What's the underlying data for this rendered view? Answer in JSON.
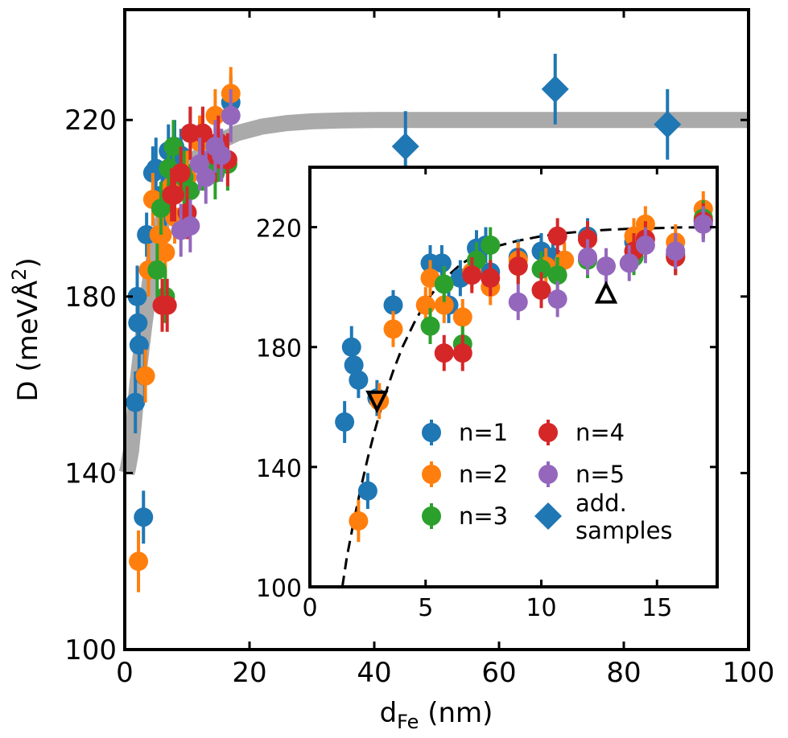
{
  "chart_data": [
    {
      "name": "main",
      "type": "scatter",
      "xlabel": {
        "main": "d",
        "sub": "Fe",
        "unit": " (nm)"
      },
      "ylabel": {
        "main": "D (meVÅ",
        "sup": "2",
        "close": ")"
      },
      "xlim": [
        0,
        100
      ],
      "ylim": [
        100,
        245
      ],
      "xticks": [
        "0",
        "20",
        "40",
        "60",
        "80",
        "100"
      ],
      "yticks": [
        "100",
        "140",
        "180",
        "220"
      ],
      "xtick_values": [
        0,
        20,
        40,
        60,
        80,
        100
      ],
      "ytick_values": [
        100,
        140,
        180,
        220
      ],
      "fit_band": {
        "color": "#aaaaaa",
        "x": [
          0.3,
          0.5,
          1.0,
          1.5,
          2,
          3,
          4,
          5,
          6,
          7,
          8,
          10,
          12,
          15,
          18,
          22,
          26,
          30,
          35,
          40,
          50,
          60,
          80,
          100
        ],
        "y": [
          140,
          141,
          145,
          152,
          160,
          172,
          183,
          191,
          197,
          201,
          205,
          209,
          212,
          215,
          217,
          218.5,
          219.3,
          219.7,
          219.9,
          220,
          220,
          220,
          220,
          220
        ]
      },
      "series": [
        {
          "name": "n=1",
          "color": "#1f77b4",
          "points": [
            [
              1.7,
              156,
              7
            ],
            [
              2.0,
              180,
              7
            ],
            [
              2.1,
              174,
              7
            ],
            [
              2.3,
              169,
              6
            ],
            [
              3.0,
              130,
              6
            ],
            [
              3.2,
              162,
              6
            ],
            [
              3.5,
              194,
              5
            ],
            [
              4.5,
              208,
              6
            ],
            [
              5.0,
              209,
              7
            ],
            [
              6.0,
              203,
              7
            ],
            [
              6.5,
              202,
              6
            ],
            [
              7.0,
              213,
              6
            ],
            [
              8.0,
              214,
              6
            ],
            [
              9.0,
              212,
              6
            ],
            [
              10.5,
              217,
              6
            ],
            [
              12.5,
              217,
              6
            ],
            [
              15.5,
              212,
              6
            ],
            [
              17.0,
              224,
              6
            ]
          ]
        },
        {
          "name": "n=2",
          "color": "#ff7f0e",
          "points": [
            [
              2.2,
              120,
              7
            ],
            [
              3.3,
              162,
              6
            ],
            [
              3.8,
              186,
              6
            ],
            [
              4.5,
              202,
              6
            ],
            [
              5.5,
              194,
              6
            ],
            [
              6.0,
              194,
              6
            ],
            [
              6.5,
              190,
              6
            ],
            [
              7.5,
              205,
              6
            ],
            [
              8.0,
              198,
              6
            ],
            [
              10.0,
              207,
              6
            ],
            [
              12.0,
              215,
              6
            ],
            [
              14.5,
              221,
              6
            ],
            [
              15.0,
              215,
              6
            ],
            [
              17.0,
              226,
              6
            ]
          ]
        },
        {
          "name": "n=3",
          "color": "#2ca02c",
          "points": [
            [
              5.2,
              186,
              6
            ],
            [
              5.8,
              200,
              6
            ],
            [
              6.5,
              180,
              6
            ],
            [
              7.0,
              209,
              6
            ],
            [
              7.8,
              214,
              6
            ],
            [
              9.5,
              207,
              6
            ],
            [
              10.5,
              204,
              6
            ],
            [
              12.5,
              210,
              6
            ],
            [
              14.5,
              208,
              6
            ],
            [
              16.5,
              210,
              6
            ]
          ]
        },
        {
          "name": "n=4",
          "color": "#d62728",
          "points": [
            [
              6.0,
              178,
              6
            ],
            [
              6.8,
              178,
              6
            ],
            [
              7.5,
              203,
              6
            ],
            [
              8.0,
              203,
              6
            ],
            [
              9.0,
              208,
              6
            ],
            [
              10.0,
              199,
              6
            ],
            [
              10.5,
              217,
              6
            ],
            [
              12.5,
              217,
              6
            ],
            [
              14.5,
              212,
              6
            ],
            [
              15.0,
              215,
              6
            ],
            [
              16.5,
              211,
              6
            ]
          ]
        },
        {
          "name": "n=5",
          "color": "#9467bd",
          "points": [
            [
              9.0,
              195,
              6
            ],
            [
              10.5,
              196,
              6
            ],
            [
              12.0,
              210,
              6
            ],
            [
              13.0,
              207,
              6
            ],
            [
              14.5,
              214,
              6
            ],
            [
              15.5,
              212,
              6
            ],
            [
              17.0,
              221,
              6
            ]
          ]
        },
        {
          "name": "add. samples",
          "color": "#1f77b4",
          "marker": "diamond",
          "points": [
            [
              45,
              214,
              8
            ],
            [
              69,
              227,
              8
            ],
            [
              87,
              219,
              8
            ]
          ]
        }
      ]
    },
    {
      "name": "inset",
      "type": "scatter",
      "xlim": [
        0,
        17.6
      ],
      "ylim": [
        100,
        240
      ],
      "xticks": [
        "0",
        "5",
        "10",
        "15"
      ],
      "yticks": [
        "100",
        "140",
        "180",
        "220"
      ],
      "xtick_values": [
        0,
        5,
        10,
        15
      ],
      "ytick_values": [
        100,
        140,
        180,
        220
      ],
      "dashed_fit": {
        "x": [
          1.4,
          1.6,
          1.9,
          2.2,
          2.5,
          2.8,
          3.2,
          3.6,
          4.0,
          4.5,
          5.0,
          5.5,
          6.0,
          6.5,
          7.0,
          7.5,
          8.0,
          9.0,
          10.0,
          11.0,
          12.0,
          13.0,
          14.0,
          15.0,
          16.0,
          17.5
        ],
        "y": [
          100,
          110,
          122,
          133,
          143,
          152,
          163,
          172,
          180,
          188,
          195,
          200,
          204,
          207.5,
          210,
          212,
          213.5,
          215.5,
          217,
          218,
          218.7,
          219.2,
          219.5,
          219.7,
          219.9,
          220
        ]
      },
      "open_triangles": [
        {
          "x": 2.9,
          "y": 162,
          "direction": "down"
        },
        {
          "x": 12.8,
          "y": 198,
          "direction": "up"
        }
      ],
      "series": [
        {
          "name": "n=1",
          "color": "#1f77b4",
          "points": [
            [
              1.5,
              155,
              7
            ],
            [
              1.8,
              180,
              7
            ],
            [
              1.9,
              174,
              7
            ],
            [
              2.1,
              169,
              6
            ],
            [
              2.5,
              132,
              6
            ],
            [
              2.9,
              163,
              6
            ],
            [
              3.6,
              194,
              5
            ],
            [
              5.2,
              208,
              6
            ],
            [
              5.7,
              208,
              6
            ],
            [
              6.0,
              194,
              6
            ],
            [
              6.5,
              203,
              6
            ],
            [
              7.2,
              213,
              6
            ],
            [
              7.6,
              214,
              6
            ],
            [
              7.8,
              205,
              6
            ],
            [
              9.0,
              210,
              6
            ],
            [
              10.0,
              212,
              6
            ],
            [
              10.5,
              210,
              6
            ],
            [
              12.0,
              217,
              6
            ],
            [
              14.0,
              215,
              6
            ],
            [
              15.8,
              211,
              6
            ],
            [
              17.0,
              222,
              6
            ]
          ]
        },
        {
          "name": "n=2",
          "color": "#ff7f0e",
          "points": [
            [
              2.1,
              122,
              7
            ],
            [
              3.0,
              162,
              6
            ],
            [
              3.6,
              186,
              6
            ],
            [
              5.0,
              194,
              6
            ],
            [
              5.2,
              203,
              6
            ],
            [
              5.8,
              194,
              6
            ],
            [
              6.6,
              190,
              6
            ],
            [
              7.0,
              205,
              6
            ],
            [
              7.8,
              200,
              6
            ],
            [
              9.0,
              209,
              6
            ],
            [
              10.2,
              207,
              6
            ],
            [
              11.0,
              209,
              6
            ],
            [
              12.0,
              216,
              6
            ],
            [
              14.0,
              217,
              6
            ],
            [
              14.5,
              221,
              6
            ],
            [
              15.8,
              215,
              6
            ],
            [
              17.0,
              226,
              6
            ]
          ]
        },
        {
          "name": "n=3",
          "color": "#2ca02c",
          "points": [
            [
              5.2,
              187,
              6
            ],
            [
              5.8,
              201,
              6
            ],
            [
              6.6,
              181,
              6
            ],
            [
              7.2,
              209,
              6
            ],
            [
              7.8,
              214,
              6
            ],
            [
              9.0,
              207,
              6
            ],
            [
              10.0,
              206,
              6
            ],
            [
              10.7,
              204,
              6
            ],
            [
              12.0,
              209,
              6
            ],
            [
              14.0,
              210,
              6
            ],
            [
              15.8,
              210,
              6
            ],
            [
              17.0,
              223,
              6
            ]
          ]
        },
        {
          "name": "n=4",
          "color": "#d62728",
          "points": [
            [
              5.8,
              178,
              6
            ],
            [
              6.6,
              178,
              6
            ],
            [
              7.0,
              204,
              6
            ],
            [
              7.8,
              203,
              6
            ],
            [
              9.0,
              207,
              6
            ],
            [
              10.0,
              199,
              6
            ],
            [
              10.7,
              217,
              6
            ],
            [
              12.0,
              216,
              6
            ],
            [
              14.0,
              212,
              6
            ],
            [
              14.5,
              216,
              6
            ],
            [
              15.8,
              210,
              6
            ],
            [
              17.0,
              222,
              6
            ]
          ]
        },
        {
          "name": "n=5",
          "color": "#9467bd",
          "points": [
            [
              9.0,
              195,
              6
            ],
            [
              10.7,
              196,
              6
            ],
            [
              12.0,
              210,
              6
            ],
            [
              12.8,
              207,
              6
            ],
            [
              13.8,
              208,
              6
            ],
            [
              14.5,
              214,
              6
            ],
            [
              15.8,
              212,
              6
            ],
            [
              17.0,
              221,
              6
            ]
          ]
        }
      ]
    }
  ],
  "legend": [
    {
      "label": "n=1",
      "color": "#1f77b4",
      "marker": "circle"
    },
    {
      "label": "n=4",
      "color": "#d62728",
      "marker": "circle"
    },
    {
      "label": "n=2",
      "color": "#ff7f0e",
      "marker": "circle"
    },
    {
      "label": "n=5",
      "color": "#9467bd",
      "marker": "circle"
    },
    {
      "label": "n=3",
      "color": "#2ca02c",
      "marker": "circle"
    },
    {
      "label": "add.",
      "label2": "samples",
      "color": "#1f77b4",
      "marker": "diamond"
    }
  ]
}
